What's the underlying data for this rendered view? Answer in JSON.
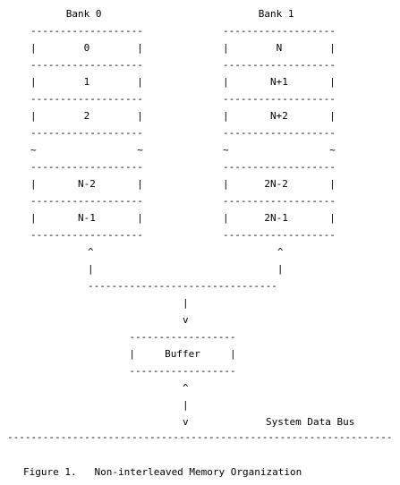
{
  "bank0": {
    "title": "Bank 0",
    "cells": [
      "0",
      "1",
      "2",
      "",
      "N-2",
      "N-1"
    ]
  },
  "bank1": {
    "title": "Bank 1",
    "cells": [
      "N",
      "N+1",
      "N+2",
      "",
      "2N-2",
      "2N-1"
    ]
  },
  "buffer": {
    "label": "Buffer"
  },
  "bus": {
    "label": "System Data Bus"
  },
  "caption": {
    "text": "Figure 1.   Non-interleaved Memory Organization"
  }
}
